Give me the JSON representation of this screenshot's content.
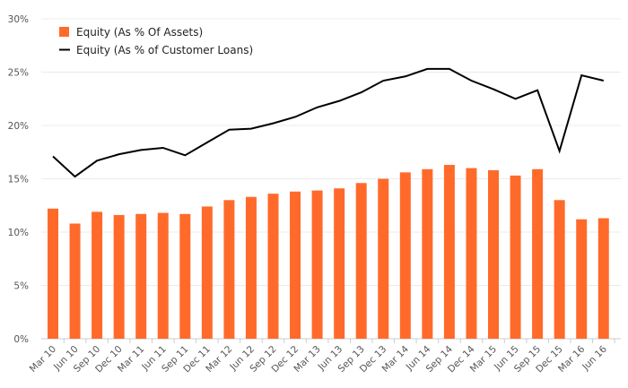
{
  "chart_data": {
    "type": "bar+line",
    "title": "",
    "xlabel": "",
    "ylabel": "",
    "ylim": [
      0,
      30
    ],
    "y_ticks": [
      "0%",
      "5%",
      "10%",
      "15%",
      "20%",
      "25%",
      "30%"
    ],
    "y_tick_values": [
      0,
      5,
      10,
      15,
      20,
      25,
      30
    ],
    "grid": true,
    "legend_placement": "top-left",
    "categories": [
      "Mar 10",
      "Jun 10",
      "Sep 10",
      "Dec 10",
      "Mar 11",
      "Jun 11",
      "Sep 11",
      "Dec 11",
      "Mar 12",
      "Jun 12",
      "Sep 12",
      "Dec 12",
      "Mar 13",
      "Jun 13",
      "Sep 13",
      "Dec 13",
      "Mar 14",
      "Jun 14",
      "Sep 14",
      "Dec 14",
      "Mar 15",
      "Jun 15",
      "Sep 15",
      "Dec 15",
      "Mar 16",
      "Jun 16"
    ],
    "series": [
      {
        "name": "Equity (As % Of Assets)",
        "type": "bar",
        "color": "#ff6a2b",
        "values": [
          12.2,
          10.8,
          11.9,
          11.6,
          11.7,
          11.8,
          11.7,
          12.4,
          13.0,
          13.3,
          13.6,
          13.8,
          13.9,
          14.1,
          14.6,
          15.0,
          15.6,
          15.9,
          16.3,
          16.0,
          15.8,
          15.3,
          15.9,
          13.0,
          11.2,
          11.3
        ]
      },
      {
        "name": "Equity (As % of Customer Loans)",
        "type": "line",
        "color": "#000000",
        "values": [
          17.1,
          15.2,
          16.7,
          17.3,
          17.7,
          17.9,
          17.2,
          18.4,
          19.6,
          19.7,
          20.2,
          20.8,
          21.7,
          22.3,
          23.1,
          24.2,
          24.6,
          25.3,
          25.3,
          24.2,
          23.4,
          22.5,
          23.3,
          17.6,
          24.7,
          24.2
        ]
      }
    ]
  }
}
